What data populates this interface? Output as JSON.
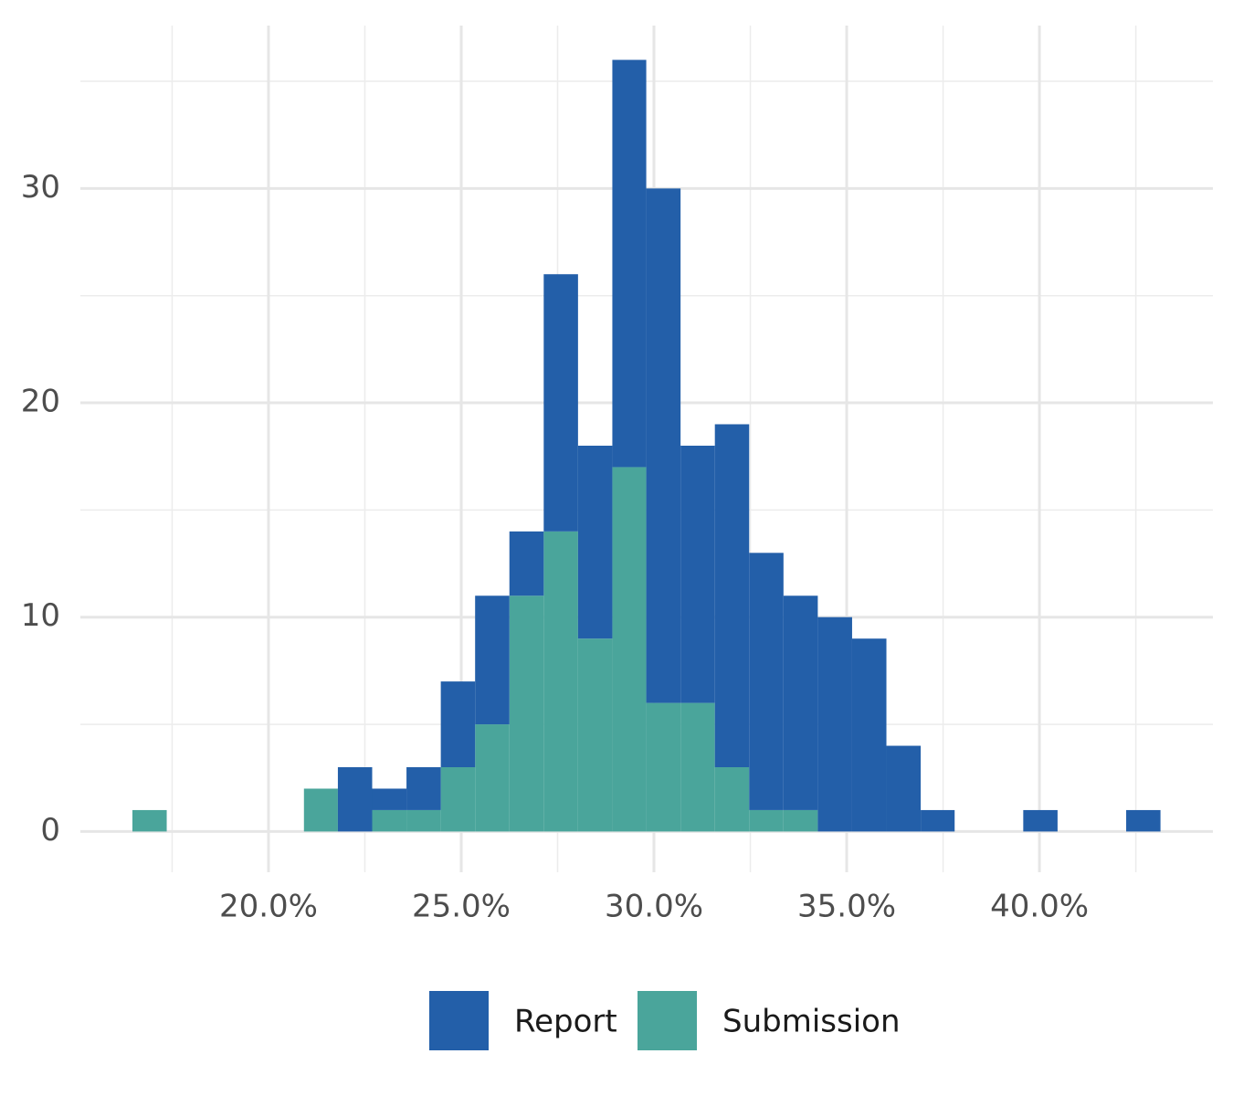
{
  "chart_data": {
    "type": "histogram",
    "bins": [
      16.47,
      17.36,
      18.25,
      19.14,
      20.03,
      20.92,
      21.8,
      22.69,
      23.58,
      24.47,
      25.36,
      26.25,
      27.14,
      28.03,
      28.92,
      29.8,
      30.69,
      31.58,
      32.47,
      33.36,
      34.25,
      35.14,
      36.03,
      36.92,
      37.8,
      38.69,
      39.58,
      40.47,
      41.36,
      42.25,
      43.14
    ],
    "series": [
      {
        "name": "Report",
        "color": "#235fa9",
        "values": [
          0,
          0,
          0,
          0,
          0,
          0,
          3,
          1,
          2,
          4,
          6,
          3,
          12,
          9,
          19,
          24,
          12,
          16,
          12,
          10,
          10,
          9,
          4,
          1,
          0,
          0,
          1,
          0,
          0,
          1
        ]
      },
      {
        "name": "Submission",
        "color": "#4aa59b",
        "values": [
          1,
          0,
          0,
          0,
          0,
          2,
          0,
          1,
          1,
          3,
          5,
          11,
          14,
          9,
          17,
          6,
          6,
          3,
          1,
          1,
          0,
          0,
          0,
          0,
          0,
          0,
          0,
          0,
          0,
          0
        ]
      }
    ],
    "stacked": true,
    "xlim": [
      15.12,
      44.5
    ],
    "xticks": [
      {
        "value": 20,
        "label": "20.0%"
      },
      {
        "value": 25,
        "label": "25.0%"
      },
      {
        "value": 30,
        "label": "30.0%"
      },
      {
        "value": 35,
        "label": "35.0%"
      },
      {
        "value": 40,
        "label": "40.0%"
      }
    ],
    "minor_xticks": [
      17.5,
      22.5,
      27.5,
      32.5,
      37.5,
      42.5
    ],
    "ylim": [
      -1.9,
      37.6
    ],
    "yticks": [
      0,
      10,
      20,
      30
    ],
    "minor_yticks": [
      5,
      15,
      25,
      35
    ],
    "grid": true,
    "legend": "bottom"
  }
}
